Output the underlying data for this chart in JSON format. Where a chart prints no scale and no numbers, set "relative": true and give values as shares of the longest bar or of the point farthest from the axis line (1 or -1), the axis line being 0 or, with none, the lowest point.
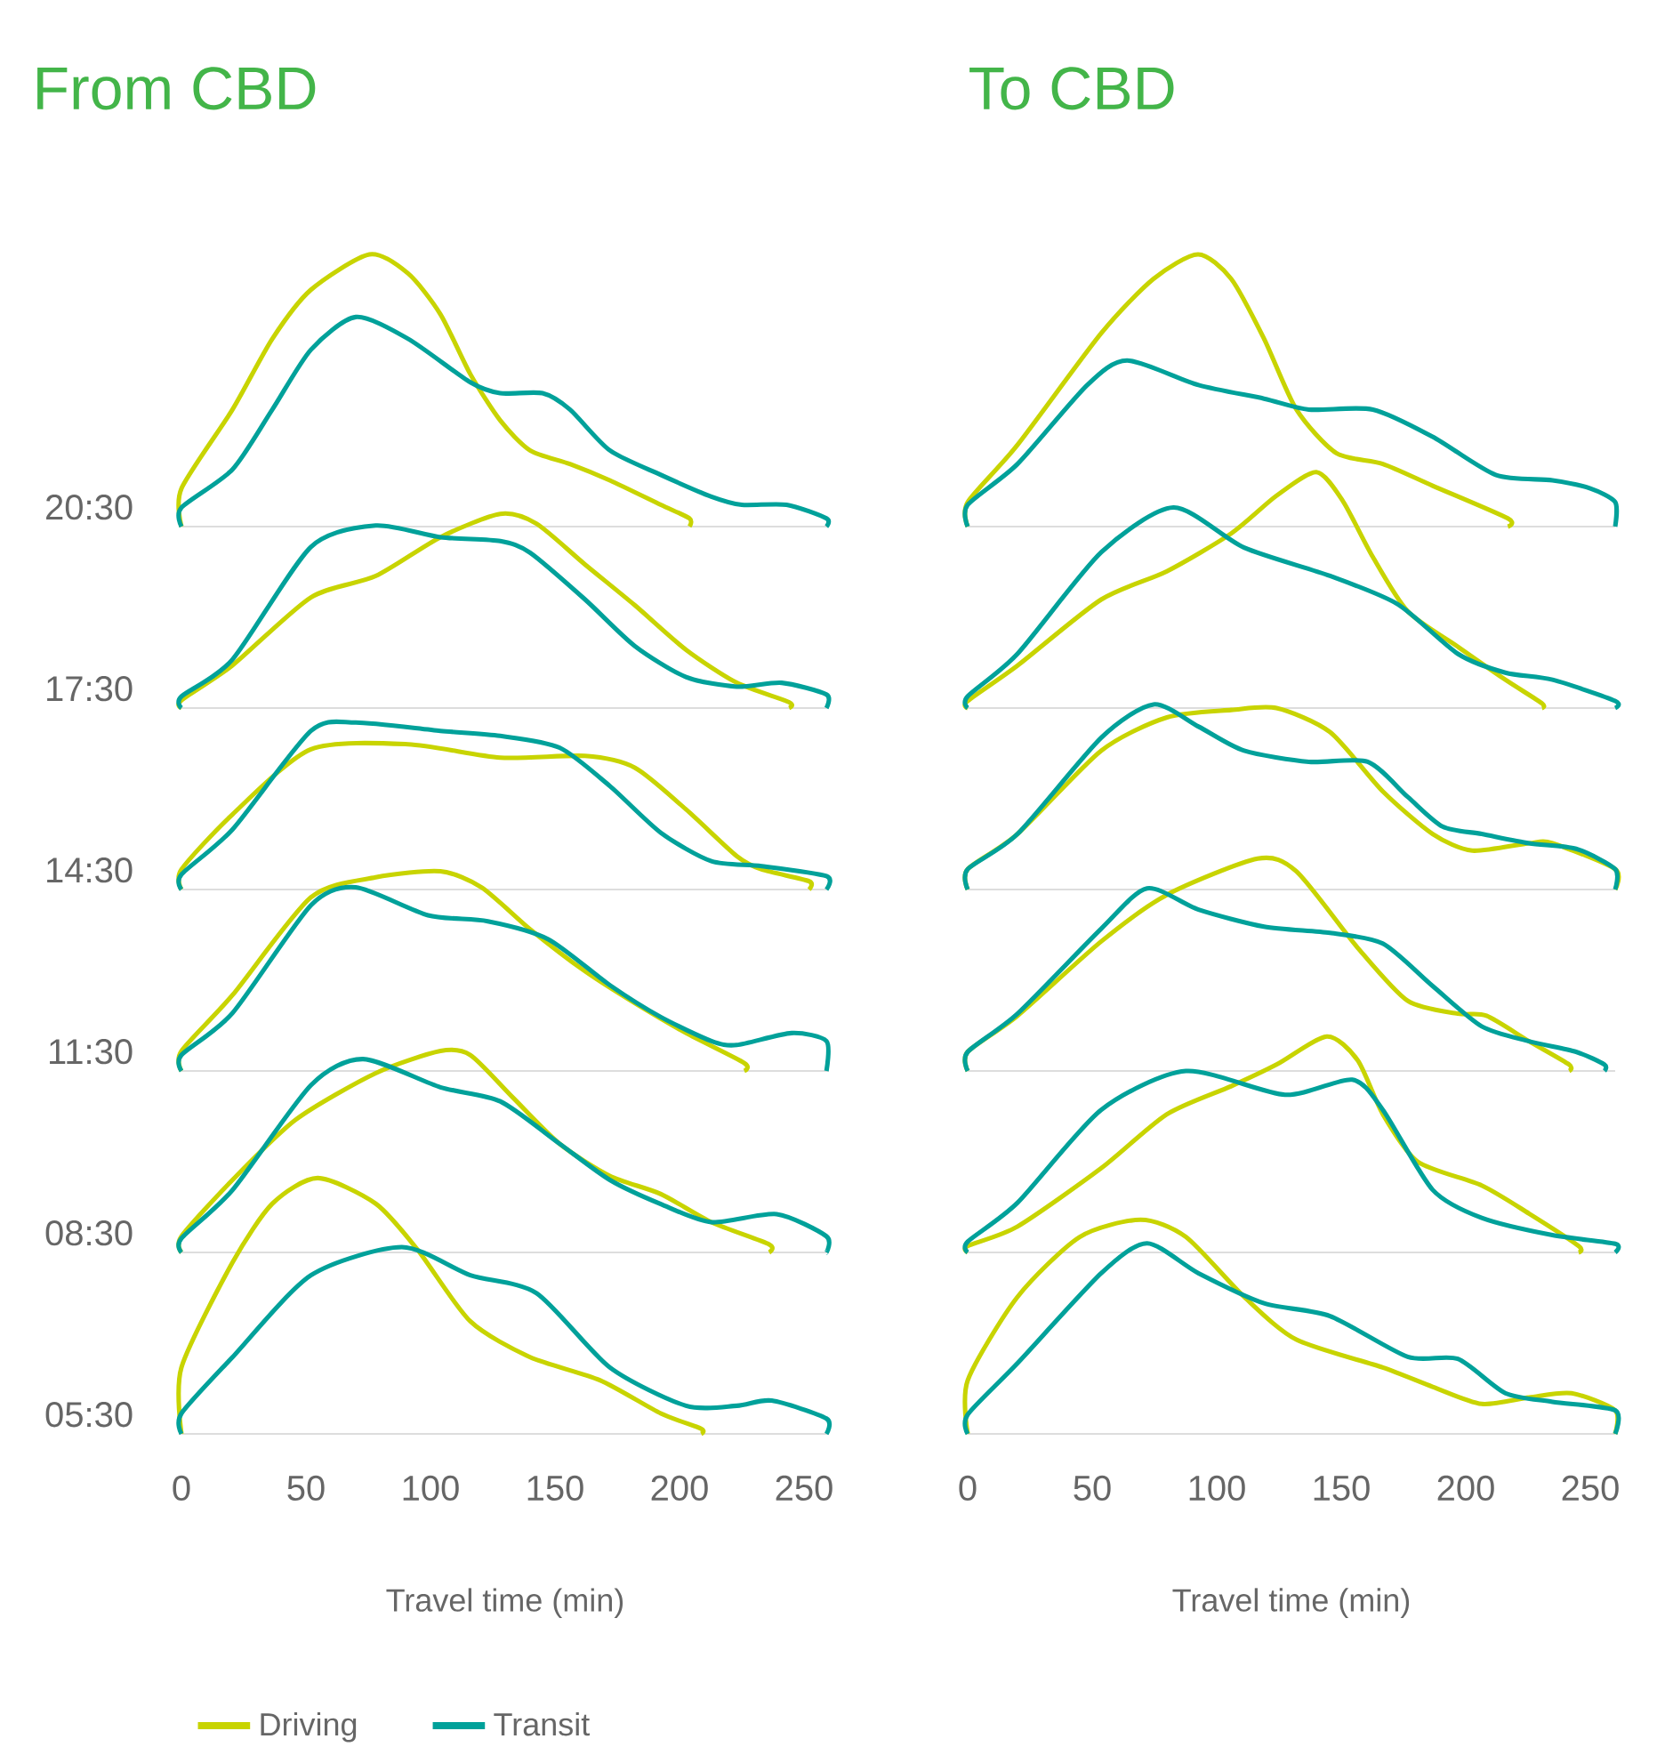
{
  "chart_data": [
    {
      "type": "line",
      "relative": true,
      "title": "From CBD",
      "ylabel": "20:30",
      "xlim": [
        0,
        260
      ],
      "tick_labels": false,
      "series": [
        {
          "color": "#c8d400",
          "x": [
            0,
            0,
            20.5,
            36.5,
            52,
            75.5,
            91,
            104,
            116,
            128,
            140,
            156,
            172,
            192.5,
            204,
            204
          ],
          "values": [
            0,
            0.14,
            0.43,
            0.69,
            0.87,
            1,
            0.93,
            0.78,
            0.56,
            0.39,
            0.28,
            0.23,
            0.17,
            0.08,
            0.03,
            0
          ]
        },
        {
          "color": "#00a19a",
          "x": [
            0,
            0,
            20.5,
            36.5,
            52,
            70,
            91,
            116,
            128,
            145,
            156,
            172,
            192.5,
            212.8,
            225,
            243,
            259,
            259
          ],
          "values": [
            0,
            0.07,
            0.21,
            0.43,
            0.65,
            0.77,
            0.69,
            0.53,
            0.49,
            0.49,
            0.43,
            0.28,
            0.19,
            0.11,
            0.08,
            0.08,
            0.03,
            0
          ]
        }
      ]
    },
    {
      "type": "line",
      "relative": true,
      "ylabel": "17:30",
      "xlim": [
        0,
        260
      ],
      "tick_labels": false,
      "series": [
        {
          "color": "#c8d400",
          "x": [
            0,
            0,
            20.5,
            52,
            78,
            104,
            128,
            142.5,
            162,
            182,
            202.6,
            223,
            244,
            244
          ],
          "values": [
            0,
            0.04,
            0.22,
            0.57,
            0.68,
            0.88,
            1,
            0.95,
            0.74,
            0.53,
            0.3,
            0.13,
            0.03,
            0
          ]
        },
        {
          "color": "#00a19a",
          "x": [
            0,
            0,
            20.5,
            52,
            78,
            104,
            128,
            140,
            162,
            182,
            202.6,
            223,
            241,
            259,
            259
          ],
          "values": [
            0,
            0.06,
            0.25,
            0.83,
            0.94,
            0.88,
            0.86,
            0.8,
            0.56,
            0.32,
            0.16,
            0.11,
            0.13,
            0.07,
            0
          ]
        }
      ]
    },
    {
      "type": "line",
      "relative": true,
      "ylabel": "14:30",
      "xlim": [
        0,
        260
      ],
      "tick_labels": false,
      "series": [
        {
          "color": "#c8d400",
          "x": [
            0,
            0,
            20.5,
            52,
            91,
            128,
            162,
            182,
            202.6,
            223,
            233,
            252,
            252
          ],
          "values": [
            0,
            0.12,
            0.45,
            0.84,
            0.87,
            0.79,
            0.8,
            0.73,
            0.48,
            0.2,
            0.12,
            0.05,
            0
          ]
        },
        {
          "color": "#00a19a",
          "x": [
            0,
            0,
            20.5,
            52,
            70,
            104,
            128,
            151.8,
            172,
            192.5,
            212.8,
            233,
            259,
            259
          ],
          "values": [
            0,
            0.09,
            0.36,
            0.95,
            1,
            0.95,
            0.92,
            0.85,
            0.62,
            0.34,
            0.17,
            0.14,
            0.08,
            0
          ]
        }
      ]
    },
    {
      "type": "line",
      "relative": true,
      "ylabel": "11:30",
      "xlim": [
        0,
        260
      ],
      "tick_labels": false,
      "series": [
        {
          "color": "#c8d400",
          "x": [
            0,
            0,
            20.5,
            52,
            78,
            104,
            120.5,
            140,
            162,
            182,
            202.6,
            226,
            226
          ],
          "values": [
            0,
            0.1,
            0.38,
            0.87,
            0.97,
            1,
            0.92,
            0.71,
            0.5,
            0.34,
            0.19,
            0.04,
            0
          ]
        },
        {
          "color": "#00a19a",
          "x": [
            0,
            0,
            20.5,
            52,
            70,
            99,
            123,
            147.3,
            172,
            192.5,
            212.8,
            223,
            245,
            259,
            259
          ],
          "values": [
            0,
            0.08,
            0.29,
            0.83,
            0.92,
            0.78,
            0.75,
            0.66,
            0.43,
            0.27,
            0.15,
            0.13,
            0.19,
            0.15,
            0
          ]
        }
      ]
    },
    {
      "type": "line",
      "relative": true,
      "ylabel": "08:30",
      "xlim": [
        0,
        260
      ],
      "tick_labels": false,
      "series": [
        {
          "color": "#c8d400",
          "x": [
            0,
            0,
            20.5,
            46,
            78,
            104,
            116,
            133,
            151.8,
            172,
            192.5,
            212.8,
            236,
            236
          ],
          "values": [
            0,
            0.08,
            0.36,
            0.66,
            0.89,
            1,
            0.98,
            0.77,
            0.54,
            0.38,
            0.29,
            0.15,
            0.04,
            0
          ]
        },
        {
          "color": "#00a19a",
          "x": [
            0,
            0,
            20.5,
            52,
            72.9,
            104,
            128,
            151.8,
            172,
            192.5,
            212.8,
            239,
            259,
            259
          ],
          "values": [
            0,
            0.07,
            0.31,
            0.83,
            0.96,
            0.82,
            0.75,
            0.54,
            0.36,
            0.24,
            0.15,
            0.19,
            0.08,
            0
          ]
        }
      ]
    },
    {
      "type": "line",
      "relative": true,
      "ylabel": "05:30",
      "xlabel": "Travel time (min)",
      "xlim": [
        0,
        260
      ],
      "xticks": [
        0,
        50,
        100,
        150,
        200,
        250
      ],
      "tick_labels": "x",
      "legend": "bottom left",
      "series": [
        {
          "name": "Driving",
          "color": "#c8d400",
          "x": [
            0,
            0,
            20.5,
            36.5,
            54.7,
            78,
            94.8,
            116,
            140,
            168,
            192.5,
            208.7,
            208.7
          ],
          "values": [
            0,
            0.26,
            0.67,
            0.9,
            1,
            0.9,
            0.72,
            0.44,
            0.3,
            0.21,
            0.08,
            0.02,
            0
          ]
        },
        {
          "name": "Transit",
          "color": "#00a19a",
          "x": [
            0,
            0,
            20.5,
            52,
            88.5,
            116,
            142.6,
            172,
            202.6,
            223,
            237,
            259,
            259
          ],
          "values": [
            0,
            0.08,
            0.3,
            0.62,
            0.73,
            0.62,
            0.55,
            0.26,
            0.11,
            0.11,
            0.13,
            0.06,
            0
          ]
        }
      ]
    },
    {
      "type": "line",
      "relative": true,
      "title": "To CBD",
      "xlim": [
        0,
        260
      ],
      "tick_labels": false,
      "series": [
        {
          "color": "#c8d400",
          "x": [
            0,
            0,
            20,
            53.6,
            74.6,
            92.5,
            105.8,
            119,
            132,
            148,
            166.7,
            186.7,
            216.9,
            216.9
          ],
          "values": [
            0,
            0.09,
            0.3,
            0.71,
            0.91,
            1,
            0.91,
            0.69,
            0.43,
            0.27,
            0.23,
            0.15,
            0.03,
            0
          ]
        },
        {
          "color": "#00a19a",
          "x": [
            0,
            0,
            20,
            48,
            64,
            92.7,
            119,
            137,
            162.7,
            186.7,
            212,
            234.8,
            250,
            260,
            260
          ],
          "values": [
            0,
            0.08,
            0.23,
            0.52,
            0.61,
            0.52,
            0.47,
            0.43,
            0.43,
            0.33,
            0.19,
            0.17,
            0.14,
            0.09,
            0
          ]
        }
      ]
    },
    {
      "type": "line",
      "relative": true,
      "xlim": [
        0,
        260
      ],
      "tick_labels": false,
      "series": [
        {
          "color": "#c8d400",
          "x": [
            0,
            0,
            20,
            53.6,
            80,
            105.8,
            124,
            140,
            150.5,
            162.7,
            176.7,
            196.8,
            215.9,
            230.6,
            230.6
          ],
          "values": [
            0,
            0.03,
            0.18,
            0.46,
            0.58,
            0.74,
            0.9,
            1,
            0.88,
            0.64,
            0.41,
            0.26,
            0.12,
            0.02,
            0
          ]
        },
        {
          "color": "#00a19a",
          "x": [
            0,
            0,
            20,
            53.6,
            82.6,
            111,
            145.5,
            172.7,
            196.8,
            215.9,
            234.8,
            260,
            260
          ],
          "values": [
            0,
            0.05,
            0.23,
            0.66,
            0.85,
            0.68,
            0.56,
            0.44,
            0.23,
            0.15,
            0.12,
            0.03,
            0
          ]
        }
      ]
    },
    {
      "type": "line",
      "relative": true,
      "xlim": [
        0,
        260
      ],
      "tick_labels": false,
      "series": [
        {
          "color": "#c8d400",
          "x": [
            0,
            0,
            20,
            53.6,
            80,
            105.8,
            124,
            145.5,
            166.7,
            186.7,
            202.6,
            225.4,
            234.8,
            260,
            260
          ],
          "values": [
            0,
            0.11,
            0.3,
            0.75,
            0.93,
            0.97,
            0.98,
            0.85,
            0.53,
            0.3,
            0.21,
            0.25,
            0.25,
            0.11,
            0
          ]
        },
        {
          "color": "#00a19a",
          "x": [
            0,
            0,
            20,
            53.6,
            74.6,
            92.7,
            111,
            137,
            160.6,
            176.7,
            190.7,
            206.4,
            225.4,
            244.3,
            260,
            260
          ],
          "values": [
            0,
            0.11,
            0.3,
            0.82,
            1,
            0.88,
            0.75,
            0.69,
            0.69,
            0.5,
            0.34,
            0.3,
            0.25,
            0.22,
            0.11,
            0
          ]
        }
      ]
    },
    {
      "type": "line",
      "relative": true,
      "xlim": [
        0,
        260
      ],
      "tick_labels": false,
      "series": [
        {
          "color": "#c8d400",
          "x": [
            0,
            0,
            20,
            53.6,
            80,
            116.4,
            132,
            156.6,
            176.7,
            196.8,
            208.3,
            225.4,
            241.5,
            241.5
          ],
          "values": [
            0,
            0.09,
            0.26,
            0.61,
            0.83,
            1,
            0.94,
            0.58,
            0.33,
            0.27,
            0.26,
            0.14,
            0.03,
            0
          ]
        },
        {
          "color": "#00a19a",
          "x": [
            0,
            0,
            20,
            53.6,
            72,
            92.7,
            119,
            145.5,
            166.7,
            186.7,
            206.4,
            225.4,
            244.3,
            255.7,
            255.7
          ],
          "values": [
            0,
            0.09,
            0.27,
            0.67,
            0.86,
            0.76,
            0.68,
            0.65,
            0.6,
            0.4,
            0.21,
            0.14,
            0.09,
            0.03,
            0
          ]
        }
      ]
    },
    {
      "type": "line",
      "relative": true,
      "xlim": [
        0,
        260
      ],
      "tick_labels": false,
      "series": [
        {
          "color": "#c8d400",
          "x": [
            0,
            0,
            20,
            53.6,
            80,
            105.8,
            124,
            144.2,
            156.6,
            166.7,
            180.7,
            206.4,
            225.4,
            245.3,
            245.3
          ],
          "values": [
            0,
            0.03,
            0.12,
            0.39,
            0.64,
            0.77,
            0.87,
            1,
            0.89,
            0.64,
            0.42,
            0.31,
            0.18,
            0.03,
            0
          ]
        },
        {
          "color": "#00a19a",
          "x": [
            0,
            0,
            20,
            53.6,
            87.6,
            127.4,
            154.4,
            166.7,
            186.7,
            206.4,
            234.8,
            260,
            260
          ],
          "values": [
            0,
            0.05,
            0.23,
            0.66,
            0.84,
            0.73,
            0.8,
            0.66,
            0.29,
            0.16,
            0.08,
            0.04,
            0
          ]
        }
      ]
    },
    {
      "type": "line",
      "relative": true,
      "xlabel": "Travel time (min)",
      "xlim": [
        0,
        260
      ],
      "xticks": [
        0,
        50,
        100,
        150,
        200,
        250
      ],
      "tick_labels": "x",
      "series": [
        {
          "color": "#c8d400",
          "x": [
            0,
            0,
            20,
            45,
            69.4,
            87.6,
            111,
            132,
            166.7,
            186.7,
            206.4,
            225.4,
            242.4,
            260,
            260
          ],
          "values": [
            0,
            0.25,
            0.64,
            0.92,
            1,
            0.92,
            0.64,
            0.44,
            0.31,
            0.22,
            0.14,
            0.17,
            0.19,
            0.11,
            0
          ]
        },
        {
          "color": "#00a19a",
          "x": [
            0,
            0,
            20,
            53.6,
            72,
            92.7,
            119,
            145.5,
            176.7,
            196.8,
            215.9,
            234.8,
            260,
            260
          ],
          "values": [
            0,
            0.09,
            0.33,
            0.75,
            0.89,
            0.75,
            0.61,
            0.55,
            0.36,
            0.35,
            0.19,
            0.15,
            0.11,
            0
          ]
        }
      ]
    }
  ]
}
